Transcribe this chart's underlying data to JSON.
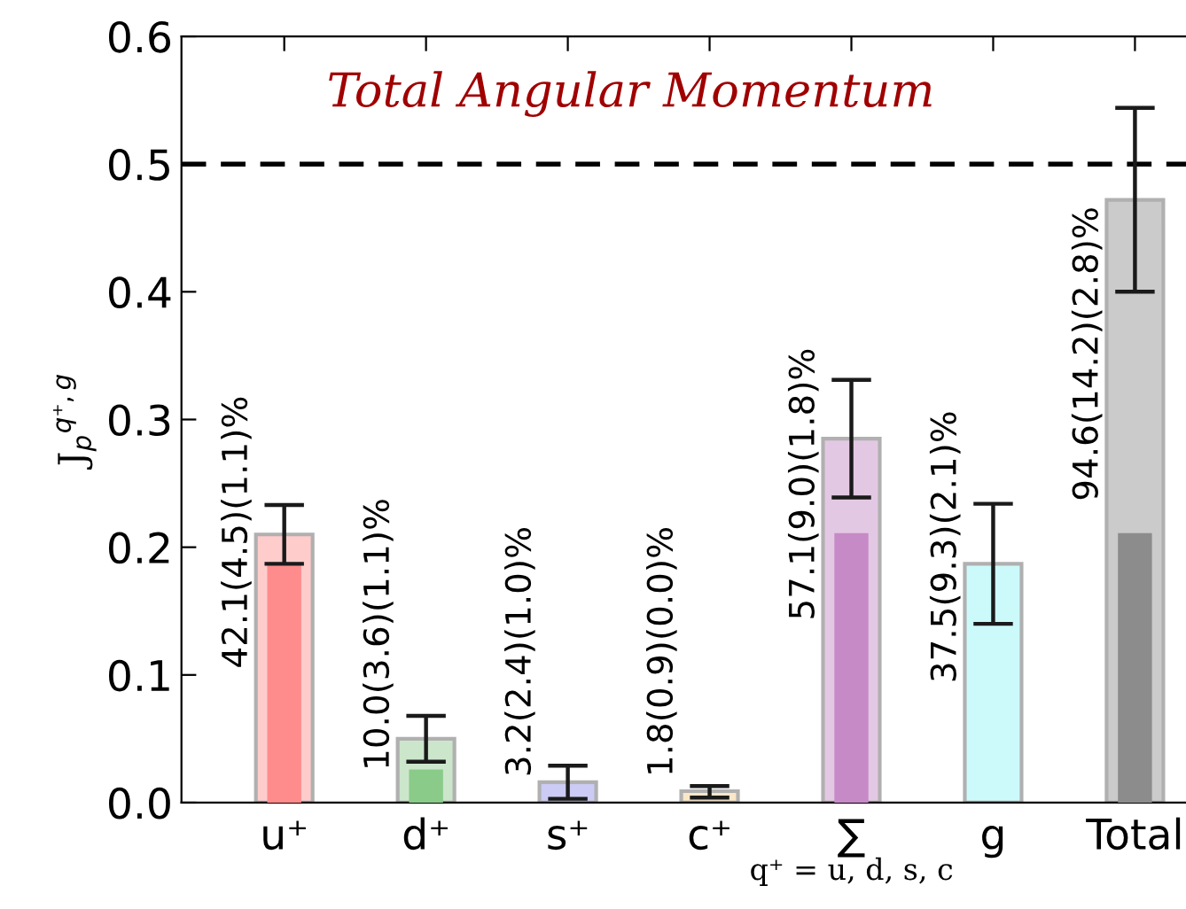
{
  "chart_data": {
    "type": "bar",
    "ylabel": "J$_{p}$$^{q⁺,g}$",
    "categories": [
      "u⁺",
      "d⁺",
      "s⁺",
      "c⁺",
      "∑",
      "g",
      "Total"
    ],
    "series": [
      {
        "values": [
          0.21,
          0.05,
          0.016,
          0.009,
          0.285,
          0.187,
          0.472
        ],
        "colors": [
          "#ffcccc",
          "#cce6cc",
          "#cbcbf5",
          "#fbe6c6",
          "#e3c8e3",
          "#ccfafa",
          "#cbcbcb"
        ],
        "errors": [
          [
            0.187,
            0.233
          ],
          [
            0.032,
            0.068
          ],
          [
            0.003,
            0.029
          ],
          [
            0.004,
            0.013
          ],
          [
            0.239,
            0.331
          ],
          [
            0.14,
            0.234
          ],
          [
            0.4,
            0.544
          ]
        ]
      },
      {
        "values": [
          0.187,
          0.026,
          null,
          null,
          0.211,
          null,
          0.211
        ],
        "colors": [
          "#ff8c8c",
          "#8acb8a",
          "#9c9cef",
          "#f5d49c",
          "#c68ac6",
          "#8ef0f0",
          "#8c8c8c"
        ]
      }
    ],
    "ylim": [
      0,
      0.6
    ],
    "yticks": [
      {
        "value": 0,
        "label": "0.0"
      },
      {
        "value": 0.1,
        "label": "0.1"
      },
      {
        "value": 0.2,
        "label": "0.2"
      },
      {
        "value": 0.3,
        "label": "0.3"
      },
      {
        "value": 0.4,
        "label": "0.4"
      },
      {
        "value": 0.5,
        "label": "0.5"
      },
      {
        "value": 0.6,
        "label": "0.6"
      }
    ],
    "ref_lines": [
      {
        "axis": "y",
        "value": 0.5,
        "line_style": "dashed",
        "color": "#000000"
      }
    ],
    "annotations": [
      "Total Angular Momentum",
      "q⁺ = u, d, s, c",
      {
        "text": "42.1(4.5)(1.1)%",
        "x": "u⁺",
        "y": 0.21
      },
      {
        "text": "10.0(3.6)(1.1)%",
        "x": "d⁺",
        "y": 0.05
      },
      {
        "text": "3.2(2.4)(1.0)%",
        "x": "s⁺",
        "y": 0.016
      },
      {
        "text": "1.8(0.9)(0.0)%",
        "x": "c⁺",
        "y": 0.009
      },
      {
        "text": "57.1(9.0)(1.8)%",
        "x": "∑",
        "y": 0.285
      },
      {
        "text": "37.5(9.3)(2.1)%",
        "x": "g",
        "y": 0.187
      },
      {
        "text": "94.6(14.2)(2.8)%",
        "x": "Total",
        "y": 0.472
      }
    ],
    "grid": false,
    "legend": false
  }
}
